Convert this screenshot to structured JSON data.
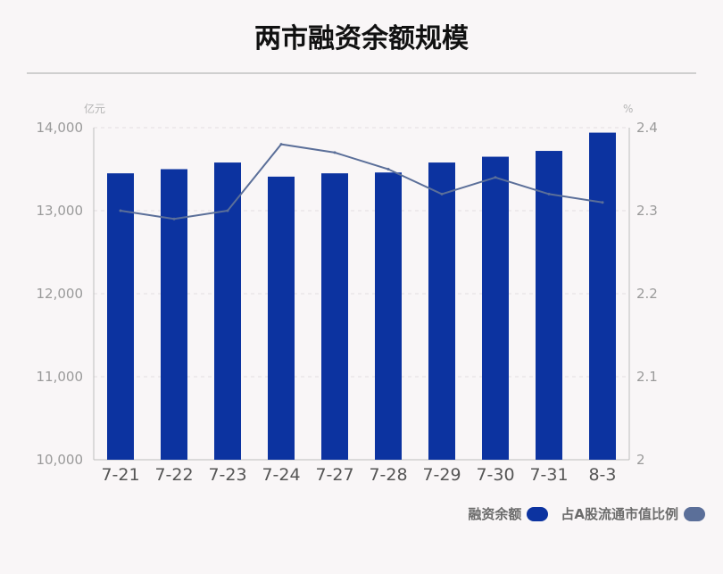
{
  "title": "两市融资余额规模",
  "chart_data": {
    "type": "bar",
    "categories": [
      "7-21",
      "7-22",
      "7-23",
      "7-24",
      "7-27",
      "7-28",
      "7-29",
      "7-30",
      "7-31",
      "8-3"
    ],
    "series": [
      {
        "name": "融资余额",
        "type": "bar",
        "axis": "left",
        "color": "#0c33a0",
        "values": [
          13450,
          13500,
          13580,
          13410,
          13450,
          13460,
          13580,
          13650,
          13720,
          13940
        ]
      },
      {
        "name": "占A股流通市值比例",
        "type": "line",
        "axis": "right",
        "color": "#5b6f99",
        "values": [
          2.3,
          2.29,
          2.3,
          2.38,
          2.37,
          2.35,
          2.32,
          2.34,
          2.32,
          2.31
        ]
      }
    ],
    "y_left": {
      "unit": "亿元",
      "range": [
        10000,
        14000
      ],
      "ticks": [
        10000,
        11000,
        12000,
        13000,
        14000
      ],
      "tick_labels": [
        "10,000",
        "11,000",
        "12,000",
        "13,000",
        "14,000"
      ]
    },
    "y_right": {
      "unit": "%",
      "range": [
        2.0,
        2.4
      ],
      "ticks": [
        2.0,
        2.1,
        2.2,
        2.3,
        2.4
      ],
      "tick_labels": [
        "2",
        "2.1",
        "2.2",
        "2.3",
        "2.4"
      ]
    },
    "grid": true,
    "legend_position": "bottom-right"
  },
  "legend": {
    "items": [
      {
        "label": "融资余额",
        "color": "#0c33a0"
      },
      {
        "label": "占A股流通市值比例",
        "color": "#5b6f99"
      }
    ]
  }
}
